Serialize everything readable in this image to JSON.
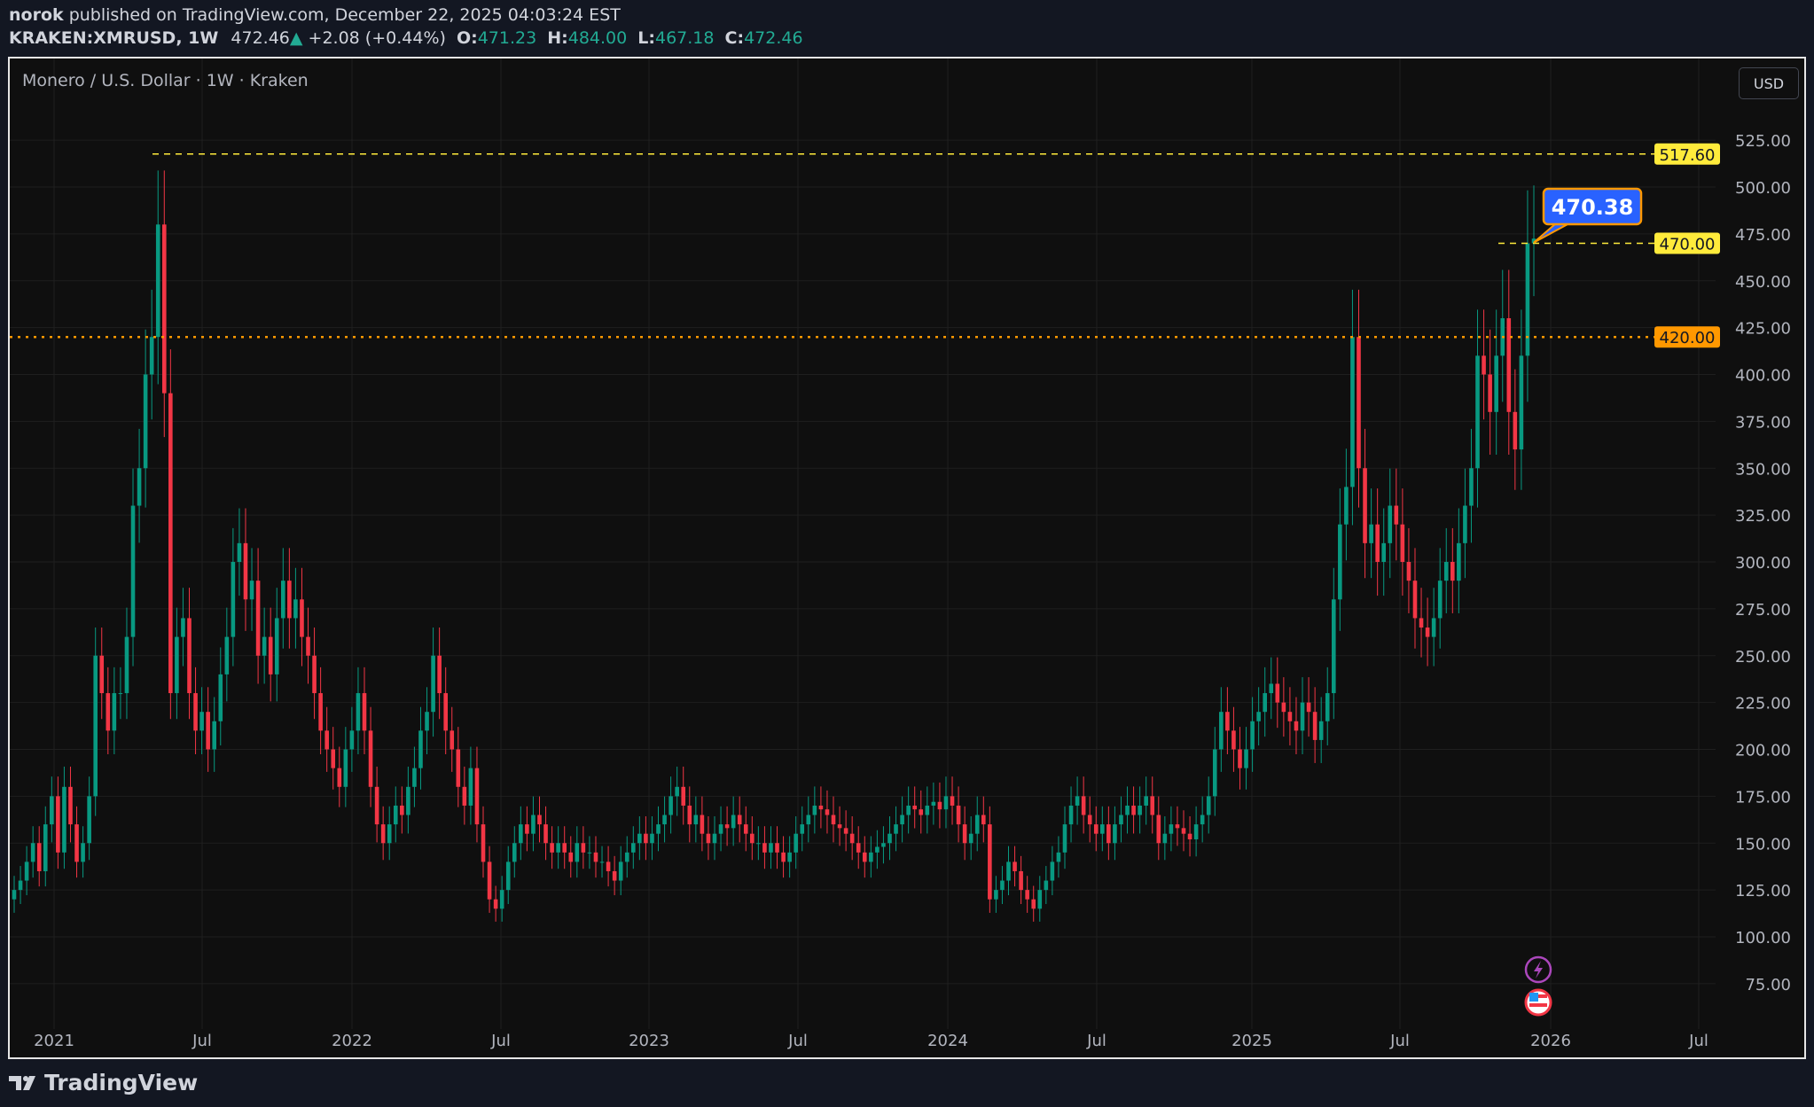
{
  "header": {
    "author": "norok",
    "published_text": "published on TradingView.com, December 22, 2025 04:03:24 EST",
    "symbol": "KRAKEN:XMRUSD, 1W",
    "last": "472.46",
    "change": "+2.08 (+0.44%)",
    "o_label": "O:",
    "o": "471.23",
    "h_label": "H:",
    "h": "484.00",
    "l_label": "L:",
    "l": "467.18",
    "c_label": "C:",
    "c": "472.46"
  },
  "legend": "Monero / U.S. Dollar · 1W · Kraken",
  "currency_button": "USD",
  "footer": {
    "brand": "TradingView"
  },
  "colors": {
    "up": "#089981",
    "down": "#f23645",
    "yellow_line": "#ffeb3b",
    "orange_line": "#ff9800",
    "callout": "#2962ff"
  },
  "chart_data": {
    "type": "candlestick",
    "timeframe": "1W",
    "ylim": [
      60,
      540
    ],
    "y_ticks": [
      "75.00",
      "100.00",
      "125.00",
      "150.00",
      "175.00",
      "200.00",
      "225.00",
      "250.00",
      "275.00",
      "300.00",
      "325.00",
      "350.00",
      "375.00",
      "400.00",
      "425.00",
      "450.00",
      "475.00",
      "500.00",
      "525.00"
    ],
    "x_ticks": [
      "2021",
      "Jul",
      "2022",
      "Jul",
      "2023",
      "Jul",
      "2024",
      "Jul",
      "2025",
      "Jul",
      "2026",
      "Jul"
    ],
    "grid": true,
    "first_open": 120,
    "close": [
      125,
      130,
      140,
      150,
      135,
      160,
      175,
      145,
      180,
      160,
      140,
      150,
      175,
      250,
      230,
      210,
      230,
      230,
      260,
      330,
      350,
      400,
      420,
      480,
      390,
      230,
      260,
      270,
      230,
      210,
      220,
      200,
      215,
      240,
      260,
      300,
      310,
      280,
      290,
      250,
      260,
      240,
      270,
      290,
      270,
      280,
      260,
      250,
      230,
      210,
      200,
      190,
      180,
      200,
      210,
      230,
      210,
      180,
      160,
      150,
      160,
      170,
      165,
      180,
      190,
      210,
      220,
      250,
      230,
      210,
      200,
      180,
      170,
      190,
      160,
      140,
      120,
      115,
      125,
      140,
      150,
      160,
      155,
      165,
      160,
      150,
      145,
      150,
      145,
      140,
      150,
      145,
      145,
      140,
      140,
      135,
      130,
      140,
      145,
      150,
      155,
      150,
      155,
      160,
      165,
      175,
      180,
      170,
      160,
      165,
      155,
      150,
      155,
      160,
      158,
      165,
      160,
      155,
      150,
      150,
      145,
      150,
      145,
      140,
      145,
      155,
      160,
      165,
      170,
      168,
      165,
      160,
      158,
      155,
      150,
      145,
      140,
      145,
      148,
      150,
      155,
      160,
      165,
      170,
      168,
      165,
      170,
      172,
      168,
      175,
      170,
      160,
      150,
      155,
      165,
      160,
      120,
      125,
      130,
      140,
      135,
      125,
      120,
      115,
      125,
      130,
      140,
      145,
      160,
      170,
      175,
      165,
      160,
      155,
      160,
      150,
      160,
      165,
      170,
      165,
      170,
      175,
      165,
      150,
      155,
      160,
      158,
      155,
      152,
      160,
      165,
      175,
      200,
      220,
      210,
      200,
      190,
      200,
      215,
      220,
      230,
      235,
      225,
      220,
      215,
      210,
      225,
      220,
      205,
      215,
      230,
      280,
      320,
      340,
      420,
      350,
      310,
      320,
      300,
      310,
      330,
      320,
      300,
      290,
      270,
      265,
      260,
      270,
      290,
      300,
      290,
      310,
      330,
      350,
      410,
      400,
      380,
      410,
      430,
      380,
      360,
      410,
      470,
      472.46
    ],
    "horizontal_lines": [
      {
        "price": 517.6,
        "label": "517.60",
        "style": "dashed",
        "color": "#ffeb3b"
      },
      {
        "price": 470.0,
        "label": "470.00",
        "style": "dashed",
        "color": "#ffeb3b"
      },
      {
        "price": 420.0,
        "label": "420.00",
        "style": "dotted",
        "color": "#ff9800"
      }
    ],
    "callout": {
      "label": "470.38",
      "price": 470.38
    }
  }
}
